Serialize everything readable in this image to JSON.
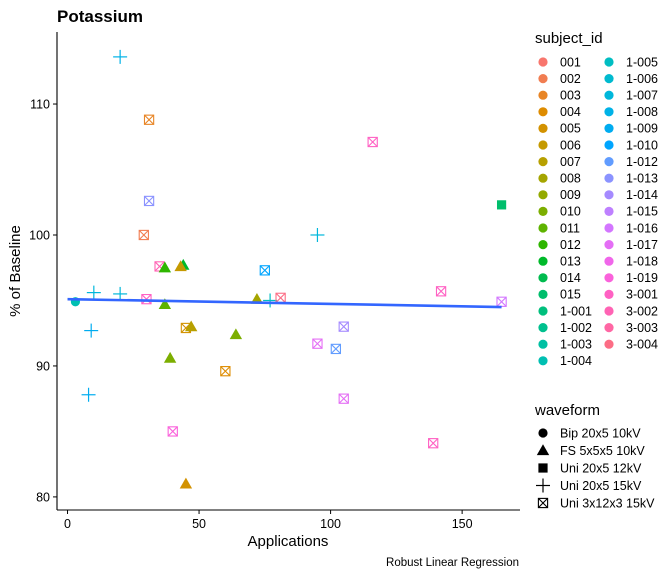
{
  "chart_data": {
    "type": "scatter",
    "title": "Potassium",
    "xlabel": "Applications",
    "ylabel": "% of Baseline",
    "caption": "Robust Linear Regression",
    "xlim": [
      -4,
      172
    ],
    "ylim": [
      79,
      115.5
    ],
    "x_ticks": [
      0,
      50,
      100,
      150
    ],
    "y_ticks": [
      80,
      90,
      100,
      110
    ],
    "grid": false,
    "legend_placement": "right",
    "regression_line": {
      "color": "#3366FF",
      "x": [
        0,
        165
      ],
      "y": [
        95.1,
        94.5
      ]
    },
    "color_legend": {
      "title": "subject_id",
      "entries": [
        {
          "label": "001",
          "color": "#F8766D"
        },
        {
          "label": "002",
          "color": "#F17D51"
        },
        {
          "label": "003",
          "color": "#E88526"
        },
        {
          "label": "004",
          "color": "#DE8C00"
        },
        {
          "label": "005",
          "color": "#D39200"
        },
        {
          "label": "006",
          "color": "#C59A00"
        },
        {
          "label": "007",
          "color": "#B7A000"
        },
        {
          "label": "008",
          "color": "#A5A500"
        },
        {
          "label": "009",
          "color": "#93AA00"
        },
        {
          "label": "010",
          "color": "#7CAE00"
        },
        {
          "label": "011",
          "color": "#5EB300"
        },
        {
          "label": "012",
          "color": "#2EB600"
        },
        {
          "label": "013",
          "color": "#00B92A"
        },
        {
          "label": "014",
          "color": "#00BB4E"
        },
        {
          "label": "015",
          "color": "#00BE6C"
        },
        {
          "label": "1-001",
          "color": "#00BF7D"
        },
        {
          "label": "1-002",
          "color": "#00C08E"
        },
        {
          "label": "1-003",
          "color": "#00C0A3"
        },
        {
          "label": "1-004",
          "color": "#00BFB2"
        },
        {
          "label": "1-005",
          "color": "#00BDC2"
        },
        {
          "label": "1-006",
          "color": "#00BACF"
        },
        {
          "label": "1-007",
          "color": "#00B7DB"
        },
        {
          "label": "1-008",
          "color": "#00B2E7"
        },
        {
          "label": "1-009",
          "color": "#00ACF0"
        },
        {
          "label": "1-010",
          "color": "#00A5FF"
        },
        {
          "label": "1-012",
          "color": "#619CFF"
        },
        {
          "label": "1-013",
          "color": "#8B93FF"
        },
        {
          "label": "1-014",
          "color": "#A58AFF"
        },
        {
          "label": "1-015",
          "color": "#BE80FF"
        },
        {
          "label": "1-016",
          "color": "#D376FF"
        },
        {
          "label": "1-017",
          "color": "#E46EF5"
        },
        {
          "label": "1-018",
          "color": "#F066EA"
        },
        {
          "label": "1-019",
          "color": "#FA62DB"
        },
        {
          "label": "3-001",
          "color": "#FF61C3"
        },
        {
          "label": "3-002",
          "color": "#FF63B4"
        },
        {
          "label": "3-003",
          "color": "#FF67A4"
        },
        {
          "label": "3-004",
          "color": "#FC6D85"
        }
      ]
    },
    "shape_legend": {
      "title": "waveform",
      "entries": [
        {
          "label": "Bip 20x5 10kV",
          "shape": "circle"
        },
        {
          "label": "FS 5x5x5 10kV",
          "shape": "triangle"
        },
        {
          "label": "Uni 20x5 12kV",
          "shape": "square"
        },
        {
          "label": "Uni 20x5 15kV",
          "shape": "plus"
        },
        {
          "label": "Uni 3x12x3 15kV",
          "shape": "boxx"
        }
      ]
    },
    "points": [
      {
        "x": 3,
        "y": 94.9,
        "shape": "circle",
        "color": "#00BFB2"
      },
      {
        "x": 20,
        "y": 113.6,
        "shape": "plus",
        "color": "#00B2E7"
      },
      {
        "x": 31,
        "y": 108.8,
        "shape": "boxx",
        "color": "#E88526"
      },
      {
        "x": 31,
        "y": 102.6,
        "shape": "boxx",
        "color": "#8B93FF"
      },
      {
        "x": 29,
        "y": 100.0,
        "shape": "boxx",
        "color": "#F17D51"
      },
      {
        "x": 35,
        "y": 97.6,
        "shape": "boxx",
        "color": "#FF63B4"
      },
      {
        "x": 37,
        "y": 97.5,
        "shape": "triangle",
        "color": "#2EB600"
      },
      {
        "x": 44,
        "y": 97.7,
        "shape": "triangle",
        "color": "#00B92A"
      },
      {
        "x": 43,
        "y": 97.6,
        "shape": "triangle",
        "color": "#C59A00"
      },
      {
        "x": 10,
        "y": 95.6,
        "shape": "plus",
        "color": "#00B7DB"
      },
      {
        "x": 20,
        "y": 95.5,
        "shape": "plus",
        "color": "#00B7DB"
      },
      {
        "x": 30,
        "y": 95.1,
        "shape": "boxx",
        "color": "#FF61C3"
      },
      {
        "x": 37,
        "y": 94.7,
        "shape": "triangle",
        "color": "#5EB300"
      },
      {
        "x": 9,
        "y": 92.7,
        "shape": "plus",
        "color": "#00ACF0"
      },
      {
        "x": 45,
        "y": 92.9,
        "shape": "boxx",
        "color": "#D39200"
      },
      {
        "x": 47,
        "y": 93.0,
        "shape": "triangle",
        "color": "#B7A000"
      },
      {
        "x": 39,
        "y": 90.6,
        "shape": "triangle",
        "color": "#7CAE00"
      },
      {
        "x": 64,
        "y": 92.4,
        "shape": "triangle",
        "color": "#7CAE00"
      },
      {
        "x": 72,
        "y": 95.1,
        "shape": "triangle",
        "color": "#A5A500"
      },
      {
        "x": 75,
        "y": 97.3,
        "shape": "boxx",
        "color": "#00A5FF"
      },
      {
        "x": 77,
        "y": 95.0,
        "shape": "plus",
        "color": "#00BDC2"
      },
      {
        "x": 81,
        "y": 95.2,
        "shape": "boxx",
        "color": "#FC6D85"
      },
      {
        "x": 60,
        "y": 89.6,
        "shape": "boxx",
        "color": "#DE8C00"
      },
      {
        "x": 8,
        "y": 87.8,
        "shape": "plus",
        "color": "#00ACF0"
      },
      {
        "x": 40,
        "y": 85.0,
        "shape": "boxx",
        "color": "#FA62DB"
      },
      {
        "x": 45,
        "y": 81.0,
        "shape": "triangle",
        "color": "#D39200"
      },
      {
        "x": 95,
        "y": 100.0,
        "shape": "plus",
        "color": "#00B7DB"
      },
      {
        "x": 95,
        "y": 91.7,
        "shape": "boxx",
        "color": "#E46EF5"
      },
      {
        "x": 102,
        "y": 91.3,
        "shape": "boxx",
        "color": "#619CFF"
      },
      {
        "x": 105,
        "y": 93.0,
        "shape": "boxx",
        "color": "#A58AFF"
      },
      {
        "x": 105,
        "y": 87.5,
        "shape": "boxx",
        "color": "#E46EF5"
      },
      {
        "x": 116,
        "y": 107.1,
        "shape": "boxx",
        "color": "#FF61C3"
      },
      {
        "x": 142,
        "y": 95.7,
        "shape": "boxx",
        "color": "#FF61C3"
      },
      {
        "x": 139,
        "y": 84.1,
        "shape": "boxx",
        "color": "#FF61C3"
      },
      {
        "x": 165,
        "y": 102.3,
        "shape": "square",
        "color": "#00BE6C"
      },
      {
        "x": 165,
        "y": 94.9,
        "shape": "boxx",
        "color": "#D376FF"
      }
    ]
  }
}
